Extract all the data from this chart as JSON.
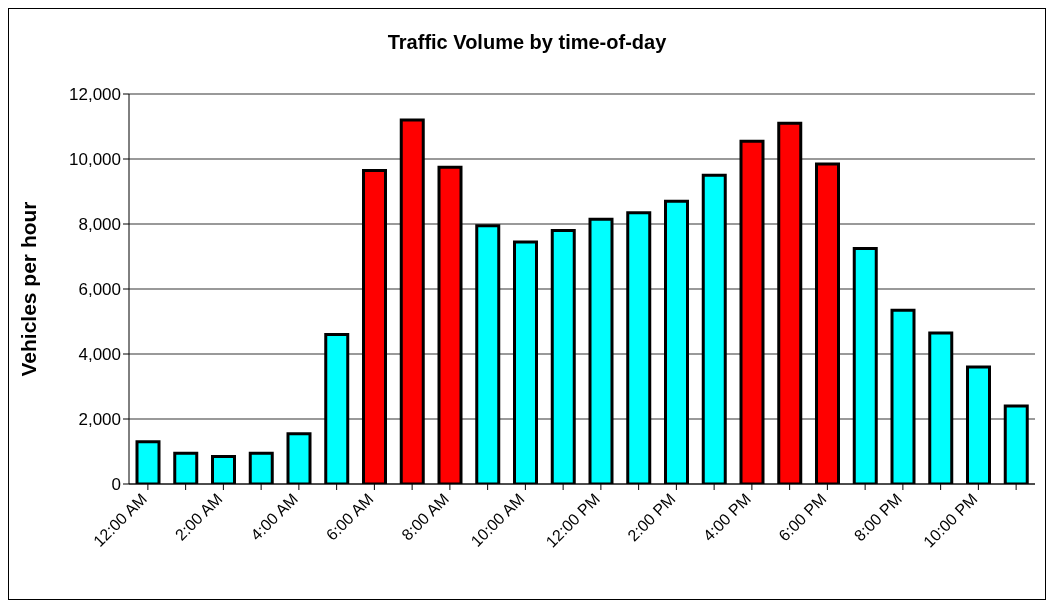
{
  "chart_data": {
    "type": "bar",
    "title": "Traffic Volume by time-of-day",
    "ylabel": "Vehicles per hour",
    "categories": [
      "12:00 AM",
      null,
      "2:00 AM",
      null,
      "4:00 AM",
      null,
      "6:00 AM",
      null,
      "8:00 AM",
      null,
      "10:00 AM",
      null,
      "12:00 PM",
      null,
      "2:00 PM",
      null,
      "4:00 PM",
      null,
      "6:00 PM",
      null,
      "8:00 PM",
      null,
      "10:00 PM",
      null
    ],
    "values": [
      1300,
      950,
      850,
      950,
      1550,
      4600,
      9650,
      11200,
      9750,
      7950,
      7450,
      7800,
      8150,
      8350,
      8700,
      9500,
      10550,
      11100,
      9850,
      7250,
      5350,
      4650,
      3600,
      2400
    ],
    "colors": [
      "#00ffff",
      "#00ffff",
      "#00ffff",
      "#00ffff",
      "#00ffff",
      "#00ffff",
      "#ff0000",
      "#ff0000",
      "#ff0000",
      "#00ffff",
      "#00ffff",
      "#00ffff",
      "#00ffff",
      "#00ffff",
      "#00ffff",
      "#00ffff",
      "#ff0000",
      "#ff0000",
      "#ff0000",
      "#00ffff",
      "#00ffff",
      "#00ffff",
      "#00ffff",
      "#00ffff"
    ],
    "ylim": [
      0,
      12000
    ],
    "yticks": [
      0,
      {
        "value": 2000,
        "label": "2,000"
      },
      {
        "value": 4000,
        "label": "4,000"
      },
      {
        "value": 6000,
        "label": "6,000"
      },
      {
        "value": 8000,
        "label": "8,000"
      },
      {
        "value": 10000,
        "label": "10,000"
      },
      {
        "value": 12000,
        "label": "12,000"
      }
    ],
    "grid": "y"
  }
}
